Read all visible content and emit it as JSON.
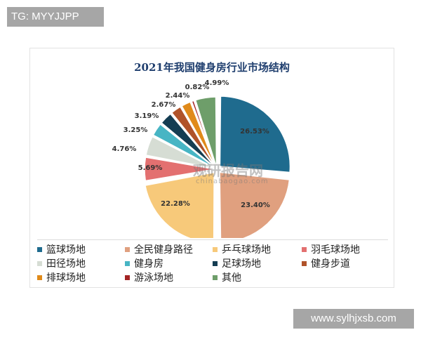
{
  "tag": "TG: MYYJJPP",
  "site": "www.sylhjxsb.com",
  "watermark": {
    "name": "观研报告网",
    "url": "chinabaogao.com"
  },
  "chart_data": {
    "type": "pie",
    "title": "2021年我国健身房行业市场结构",
    "legend_position": "bottom",
    "categories": [
      "篮球场地",
      "全民健身路径",
      "乒乓球场地",
      "羽毛球场地",
      "田径场地",
      "健身房",
      "足球场地",
      "健身步道",
      "排球场地",
      "游泳场地",
      "其他"
    ],
    "values": [
      26.53,
      23.4,
      22.28,
      5.69,
      4.76,
      3.25,
      3.19,
      2.67,
      2.44,
      0.82,
      4.99
    ],
    "labels": [
      "26.53%",
      "23.40%",
      "22.28%",
      "5.69%",
      "4.76%",
      "3.25%",
      "3.19%",
      "2.67%",
      "2.44%",
      "0.82%",
      "4.99%"
    ],
    "colors": [
      "#1f6b8e",
      "#e0a07f",
      "#f7c97a",
      "#e37070",
      "#d6ddd4",
      "#47b5c4",
      "#143d52",
      "#b0532a",
      "#e08a1a",
      "#a32424",
      "#6e9e6a"
    ]
  }
}
